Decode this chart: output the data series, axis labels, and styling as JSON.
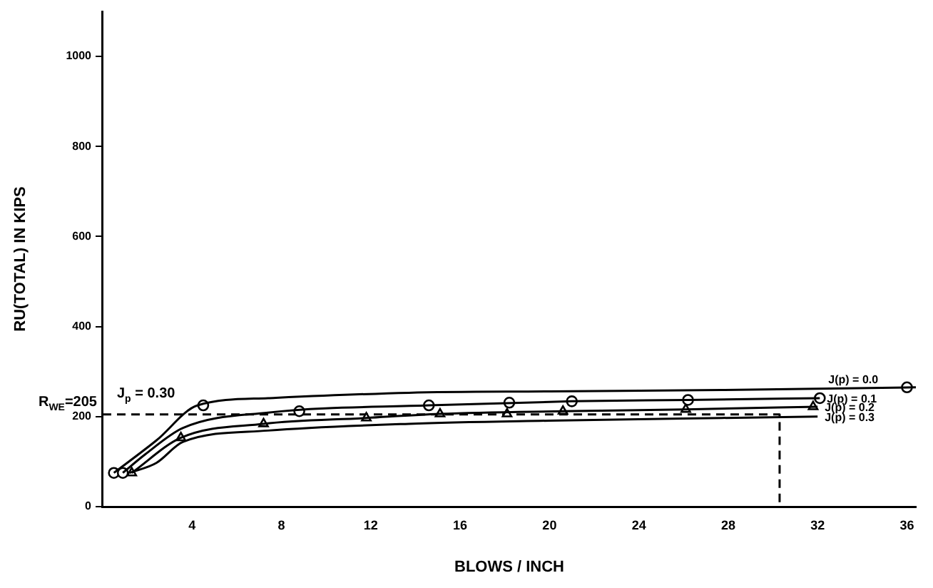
{
  "chart_data": {
    "type": "line",
    "xlabel": "BLOWS / INCH",
    "ylabel": "RU(TOTAL) IN KIPS",
    "xlim": [
      0,
      36.4
    ],
    "ylim": [
      0,
      1100
    ],
    "xticks": [
      4,
      8,
      12,
      16,
      20,
      24,
      28,
      32,
      36
    ],
    "yticks": [
      0,
      200,
      400,
      600,
      800,
      1000
    ],
    "grid": false,
    "legend": false,
    "marker": "none",
    "line_style": "solid",
    "series": [
      {
        "name": "J(p) = 0.0",
        "color": "#000000",
        "x": [
          0.5,
          2.4,
          4.25,
          7.4,
          13.7,
          20,
          27.7,
          36.4
        ],
        "values": [
          75,
          147,
          225,
          241,
          253,
          256,
          259,
          265
        ]
      },
      {
        "name": "J(p) = 0.1",
        "color": "#000000",
        "x": [
          0.9,
          1.9,
          3.6,
          7.4,
          14.6,
          21,
          26.2,
          32.1
        ],
        "values": [
          75,
          116,
          175,
          209,
          225,
          234,
          237,
          241
        ]
      },
      {
        "name": "J(p) = 0.2",
        "color": "#000000",
        "x": [
          1.3,
          3.5,
          7.2,
          11.8,
          15.1,
          20.6,
          26.1,
          32
        ],
        "values": [
          75,
          153,
          184,
          197,
          206,
          212,
          216,
          222
        ]
      },
      {
        "name": "J(p) = 0.3",
        "color": "#000000",
        "x": [
          1.2,
          2.4,
          3.6,
          7.4,
          13.7,
          20,
          27.7,
          32
        ],
        "values": [
          75,
          97,
          144,
          169,
          184,
          191,
          197,
          200
        ]
      },
      {
        "type": "scatter",
        "marker": "circle",
        "color": "#000000",
        "x": [
          0.5,
          4.5,
          36,
          0.9,
          8.8,
          14.6,
          18.2,
          21,
          26.2,
          32.1
        ],
        "values": [
          75,
          225,
          265,
          75,
          212,
          225,
          231,
          234,
          237,
          241
        ]
      },
      {
        "type": "scatter",
        "marker": "triangle",
        "color": "#000000",
        "x": [
          1.3,
          3.5,
          7.2,
          11.8,
          15.1,
          18.1,
          20.6,
          26.1,
          31.8
        ],
        "values": [
          75,
          153,
          184,
          197,
          206,
          206,
          212,
          216,
          222
        ]
      },
      {
        "type": "line",
        "line_style": "dashed",
        "color": "#000000",
        "x": [
          0,
          30.3,
          30.3
        ],
        "values": [
          205,
          205,
          0
        ]
      }
    ],
    "annotations": [
      {
        "text": "R$_{WE}$=205",
        "x": 0,
        "y": 205
      },
      "J$_{p}$ = 0.30"
    ]
  }
}
